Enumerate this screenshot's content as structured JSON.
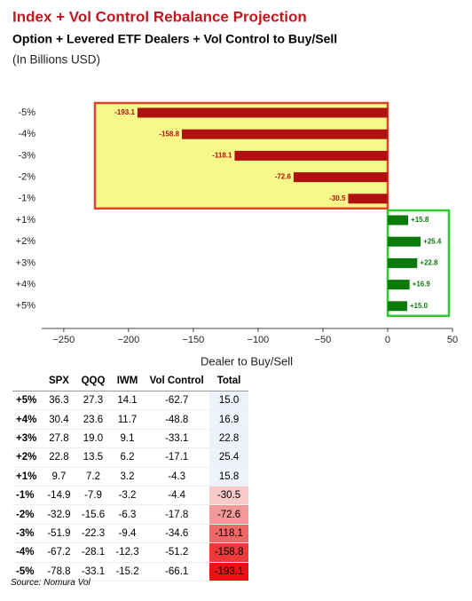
{
  "title": "Index + Vol Control Rebalance Projection",
  "subtitle": "Option + Levered ETF Dealers + Vol Control to Buy/Sell",
  "units": "(In Billions USD)",
  "chart_data": {
    "type": "bar",
    "orientation": "horizontal",
    "categories": [
      "-5%",
      "-4%",
      "-3%",
      "-2%",
      "-1%",
      "+1%",
      "+2%",
      "+3%",
      "+4%",
      "+5%"
    ],
    "values": [
      -193.1,
      -158.8,
      -118.1,
      -72.6,
      -30.5,
      15.8,
      25.4,
      22.8,
      16.9,
      15.0
    ],
    "value_labels": [
      "-193.1",
      "-158.8",
      "-118.1",
      "-72.6",
      "-30.5",
      "+15.8",
      "+25.4",
      "+22.8",
      "+16.9",
      "+15.0"
    ],
    "color_negative": "#b01010",
    "color_positive": "#0b7a0b",
    "xlim": [
      -267,
      50
    ],
    "xticks": [
      {
        "value": -250,
        "label": "−250"
      },
      {
        "value": -200,
        "label": "−200"
      },
      {
        "value": -150,
        "label": "−150"
      },
      {
        "value": -100,
        "label": "−100"
      },
      {
        "value": -50,
        "label": "−50"
      },
      0,
      50
    ],
    "xlabel": "Dealer to Buy/Sell"
  },
  "table": {
    "columns": [
      "SPX",
      "QQQ",
      "IWM",
      "Vol Control",
      "Total"
    ],
    "rows": [
      {
        "label": "+5%",
        "cells": [
          "36.3",
          "27.3",
          "14.1",
          "-62.7",
          "15.0"
        ]
      },
      {
        "label": "+4%",
        "cells": [
          "30.4",
          "23.6",
          "11.7",
          "-48.8",
          "16.9"
        ]
      },
      {
        "label": "+3%",
        "cells": [
          "27.8",
          "19.0",
          "9.1",
          "-33.1",
          "22.8"
        ]
      },
      {
        "label": "+2%",
        "cells": [
          "22.8",
          "13.5",
          "6.2",
          "-17.1",
          "25.4"
        ]
      },
      {
        "label": "+1%",
        "cells": [
          "9.7",
          "7.2",
          "3.2",
          "-4.3",
          "15.8"
        ]
      },
      {
        "label": "-1%",
        "cells": [
          "-14.9",
          "-7.9",
          "-3.2",
          "-4.4",
          "-30.5"
        ]
      },
      {
        "label": "-2%",
        "cells": [
          "-32.9",
          "-15.6",
          "-6.3",
          "-17.8",
          "-72.6"
        ]
      },
      {
        "label": "-3%",
        "cells": [
          "-51.9",
          "-22.3",
          "-9.4",
          "-34.6",
          "-118.1"
        ]
      },
      {
        "label": "-4%",
        "cells": [
          "-67.2",
          "-28.1",
          "-12.3",
          "-51.2",
          "-158.8"
        ]
      },
      {
        "label": "-5%",
        "cells": [
          "-78.8",
          "-33.1",
          "-15.2",
          "-66.1",
          "-193.1"
        ]
      }
    ]
  },
  "source": "Source: Nomura Vol"
}
